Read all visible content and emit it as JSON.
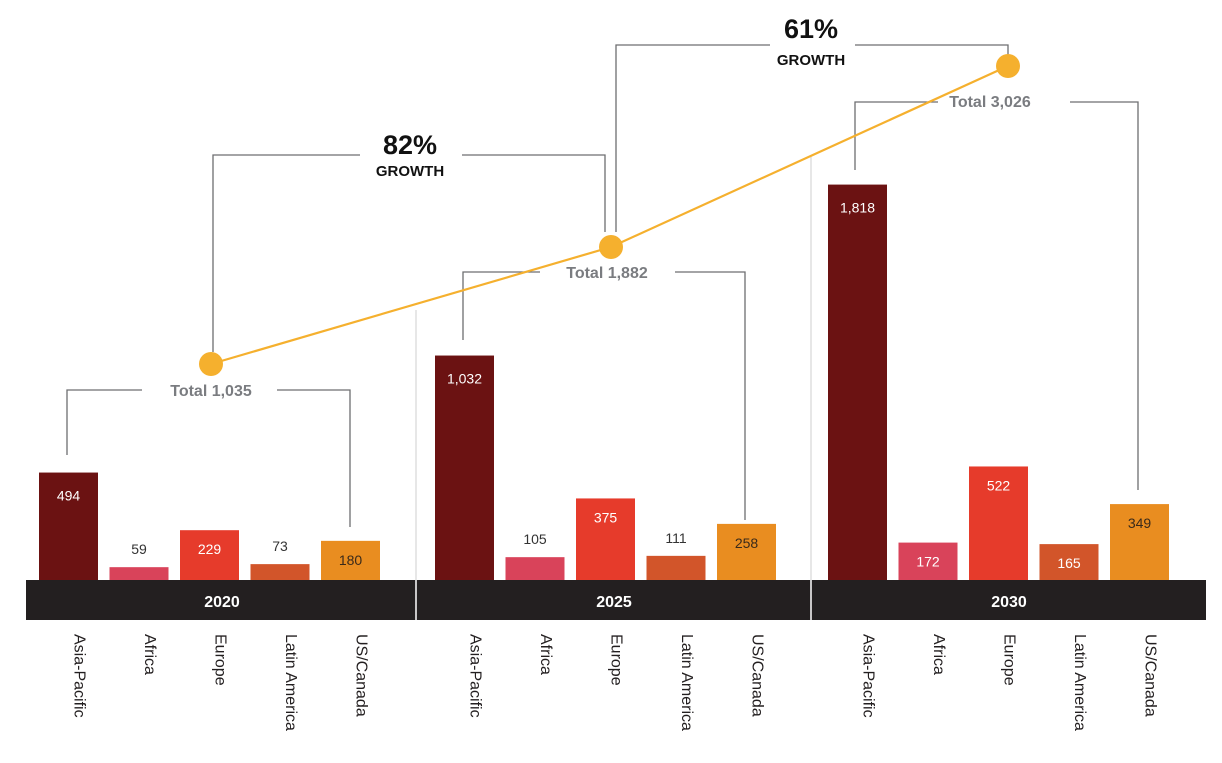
{
  "chart_data": {
    "type": "bar",
    "categories": [
      "Asia-Pacific",
      "Africa",
      "Europe",
      "Latin America",
      "US/Canada"
    ],
    "groups": [
      {
        "year": "2020",
        "values": [
          494,
          59,
          229,
          73,
          180
        ],
        "total_label": "Total 1,035",
        "total": 1035
      },
      {
        "year": "2025",
        "values": [
          1032,
          105,
          375,
          111,
          258
        ],
        "total_label": "Total 1,882",
        "total": 1882
      },
      {
        "year": "2030",
        "values": [
          1818,
          172,
          522,
          165,
          349
        ],
        "total_label": "Total 3,026",
        "total": 3026
      }
    ],
    "value_labels": [
      [
        "494",
        "59",
        "229",
        "73",
        "180"
      ],
      [
        "1,032",
        "105",
        "375",
        "111",
        "258"
      ],
      [
        "1,818",
        "172",
        "522",
        "165",
        "349"
      ]
    ],
    "growth": [
      {
        "percent": "82%",
        "label": "GROWTH"
      },
      {
        "percent": "61%",
        "label": "GROWTH"
      }
    ],
    "colors": {
      "Asia-Pacific": "#6b1212",
      "Africa": "#d9435a",
      "Europe": "#e63b2b",
      "Latin America": "#d2552a",
      "US/Canada": "#e98d20",
      "total_line": "#f5b02e",
      "year_band": "#231f20"
    },
    "grid": false,
    "legend": "none"
  }
}
